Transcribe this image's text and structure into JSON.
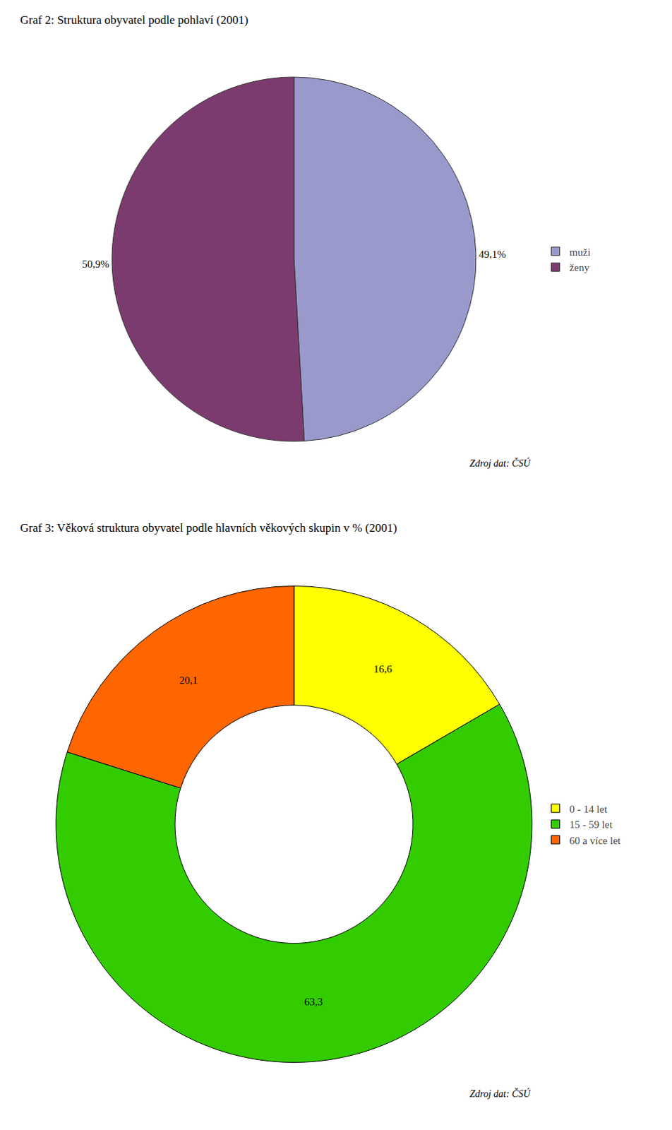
{
  "chart_data": [
    {
      "type": "pie",
      "title": "Graf 2: Struktura obyvatel podle pohlaví (2001)",
      "categories": [
        "muži",
        "ženy"
      ],
      "values": [
        49.1,
        50.9
      ],
      "value_labels": [
        "49,1%",
        "50,9%"
      ],
      "colors": [
        "#9999cc",
        "#7b3b6e"
      ],
      "data_labels": true,
      "legend": "right",
      "annotations": [
        "Zdroj dat: ČSÚ"
      ]
    },
    {
      "type": "donut",
      "title": "Graf 3: Věková struktura obyvatel podle hlavních věkových skupin v % (2001)",
      "categories": [
        "0 - 14 let",
        "15 - 59 let",
        "60 a více let"
      ],
      "values": [
        16.6,
        63.3,
        20.1
      ],
      "value_labels": [
        "16,6",
        "63,3",
        "20,1"
      ],
      "colors": [
        "#ffff00",
        "#33cc00",
        "#ff6600"
      ],
      "data_labels": true,
      "legend": "right",
      "annotations": [
        "Zdroj dat: ČSÚ"
      ]
    }
  ]
}
